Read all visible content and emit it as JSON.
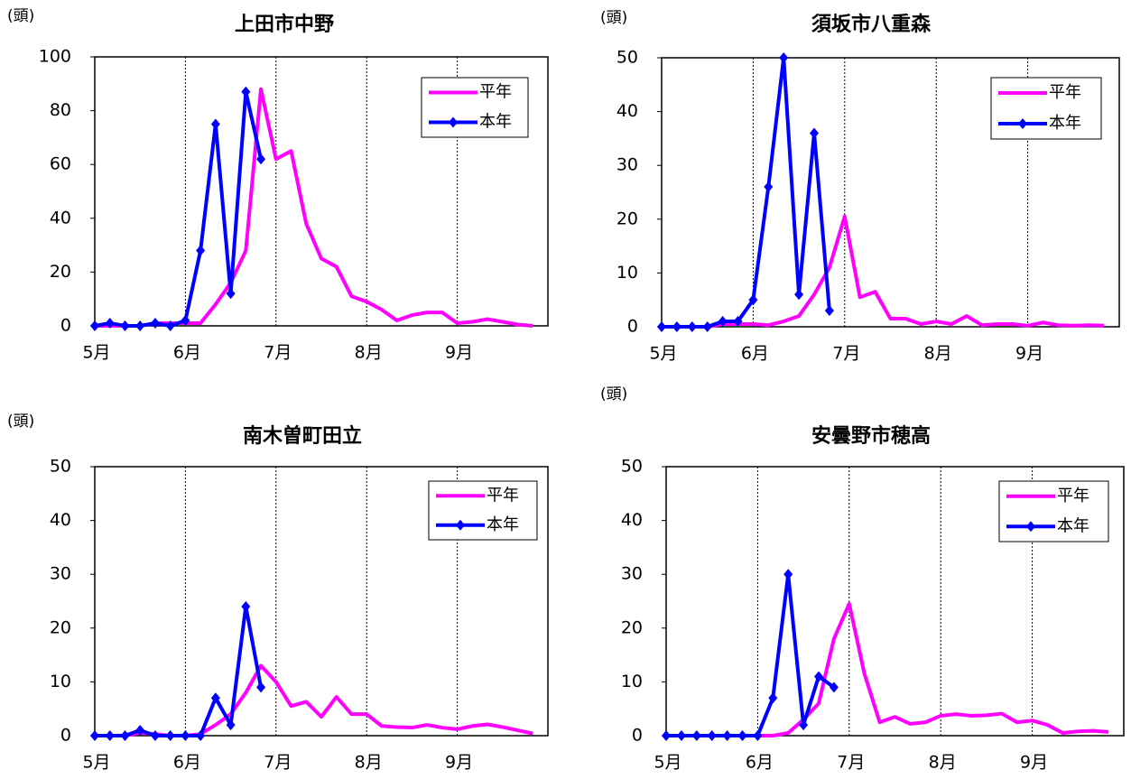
{
  "chart_data": [
    {
      "type": "line",
      "title": "上田市中野",
      "y_label": "(頭)",
      "categories": [
        "5月",
        null,
        null,
        null,
        null,
        null,
        "6月",
        null,
        null,
        null,
        null,
        null,
        "7月",
        null,
        null,
        null,
        null,
        null,
        "8月",
        null,
        null,
        null,
        null,
        null,
        "9月",
        null,
        null,
        null,
        null,
        null
      ],
      "ylim": [
        0,
        100
      ],
      "yticks": [
        0,
        20,
        40,
        60,
        80,
        100
      ],
      "legend": "top-right",
      "series": [
        {
          "name": "平年",
          "color": "#ff00ff",
          "values": [
            0,
            0,
            0,
            0,
            1,
            1,
            1,
            1,
            8,
            16,
            28,
            88,
            62,
            65,
            38,
            25,
            22,
            11,
            9,
            6,
            2,
            4,
            5,
            5,
            1,
            1.5,
            2.5,
            1.5,
            0.5,
            0
          ]
        },
        {
          "name": "本年",
          "color": "#0000ff",
          "marker": "diamond",
          "values": [
            0,
            1,
            0,
            0,
            1,
            0,
            2,
            28,
            75,
            12,
            87,
            62,
            null,
            null,
            null,
            null,
            null,
            null,
            null,
            null,
            null,
            null,
            null,
            null,
            null,
            null,
            null,
            null,
            null,
            null
          ]
        }
      ]
    },
    {
      "type": "line",
      "title": "須坂市八重森",
      "y_label": "(頭)",
      "categories": [
        "5月",
        null,
        null,
        null,
        null,
        null,
        "6月",
        null,
        null,
        null,
        null,
        null,
        "7月",
        null,
        null,
        null,
        null,
        null,
        "8月",
        null,
        null,
        null,
        null,
        null,
        "9月",
        null,
        null,
        null,
        null,
        null
      ],
      "ylim": [
        0,
        50
      ],
      "yticks": [
        0,
        10,
        20,
        30,
        40,
        50
      ],
      "legend": "top-right",
      "series": [
        {
          "name": "平年",
          "color": "#ff00ff",
          "values": [
            0,
            0,
            0,
            0,
            0.5,
            0.5,
            0.5,
            0.3,
            1,
            2,
            6,
            11,
            20.5,
            5.5,
            6.5,
            1.5,
            1.5,
            0.5,
            1,
            0.5,
            2,
            0.3,
            0.5,
            0.5,
            0.2,
            0.8,
            0.3,
            0.2,
            0.3,
            0.2
          ]
        },
        {
          "name": "本年",
          "color": "#0000ff",
          "marker": "diamond",
          "values": [
            0,
            0,
            0,
            0,
            1,
            1,
            5,
            26,
            50,
            6,
            36,
            3,
            null,
            null,
            null,
            null,
            null,
            null,
            null,
            null,
            null,
            null,
            null,
            null,
            null,
            null,
            null,
            null,
            null,
            null
          ]
        }
      ]
    },
    {
      "type": "line",
      "title": "南木曽町田立",
      "y_label": "(頭)",
      "categories": [
        "5月",
        null,
        null,
        null,
        null,
        null,
        "6月",
        null,
        null,
        null,
        null,
        null,
        "7月",
        null,
        null,
        null,
        null,
        null,
        "8月",
        null,
        null,
        null,
        null,
        null,
        "9月",
        null,
        null,
        null,
        null,
        null
      ],
      "ylim": [
        0,
        50
      ],
      "yticks": [
        0,
        10,
        20,
        30,
        40,
        50
      ],
      "legend": "top-right",
      "series": [
        {
          "name": "平年",
          "color": "#ff00ff",
          "values": [
            0,
            0,
            0,
            0.5,
            0.3,
            0,
            0,
            0.3,
            2,
            4,
            8,
            13,
            10,
            5.5,
            6.3,
            3.5,
            7.2,
            4,
            4,
            1.8,
            1.6,
            1.5,
            2,
            1.5,
            1.2,
            1.8,
            2.1,
            1.6,
            1,
            0.4
          ]
        },
        {
          "name": "本年",
          "color": "#0000ff",
          "marker": "diamond",
          "values": [
            0,
            0,
            0,
            1,
            0,
            0,
            0,
            0,
            7,
            2,
            24,
            9,
            null,
            null,
            null,
            null,
            null,
            null,
            null,
            null,
            null,
            null,
            null,
            null,
            null,
            null,
            null,
            null,
            null,
            null
          ]
        }
      ]
    },
    {
      "type": "line",
      "title": "安曇野市穂高",
      "y_label": "(頭)",
      "categories": [
        "5月",
        null,
        null,
        null,
        null,
        null,
        "6月",
        null,
        null,
        null,
        null,
        null,
        "7月",
        null,
        null,
        null,
        null,
        null,
        "8月",
        null,
        null,
        null,
        null,
        null,
        "9月",
        null,
        null,
        null,
        null,
        null
      ],
      "ylim": [
        0,
        50
      ],
      "yticks": [
        0,
        10,
        20,
        30,
        40,
        50
      ],
      "legend": "top-right",
      "series": [
        {
          "name": "平年",
          "color": "#ff00ff",
          "values": [
            0,
            0,
            0,
            0,
            0,
            0,
            0,
            0,
            0.5,
            3,
            6,
            18,
            24.5,
            11.5,
            2.5,
            3.5,
            2.2,
            2.5,
            3.7,
            4,
            3.7,
            3.8,
            4.1,
            2.5,
            2.8,
            2,
            0.5,
            0.8,
            0.9,
            0.7
          ]
        },
        {
          "name": "本年",
          "color": "#0000ff",
          "marker": "diamond",
          "values": [
            0,
            0,
            0,
            0,
            0,
            0,
            0,
            7,
            30,
            2,
            11,
            9,
            null,
            null,
            null,
            null,
            null,
            null,
            null,
            null,
            null,
            null,
            null,
            null,
            null,
            null,
            null,
            null,
            null,
            null
          ]
        }
      ]
    }
  ]
}
